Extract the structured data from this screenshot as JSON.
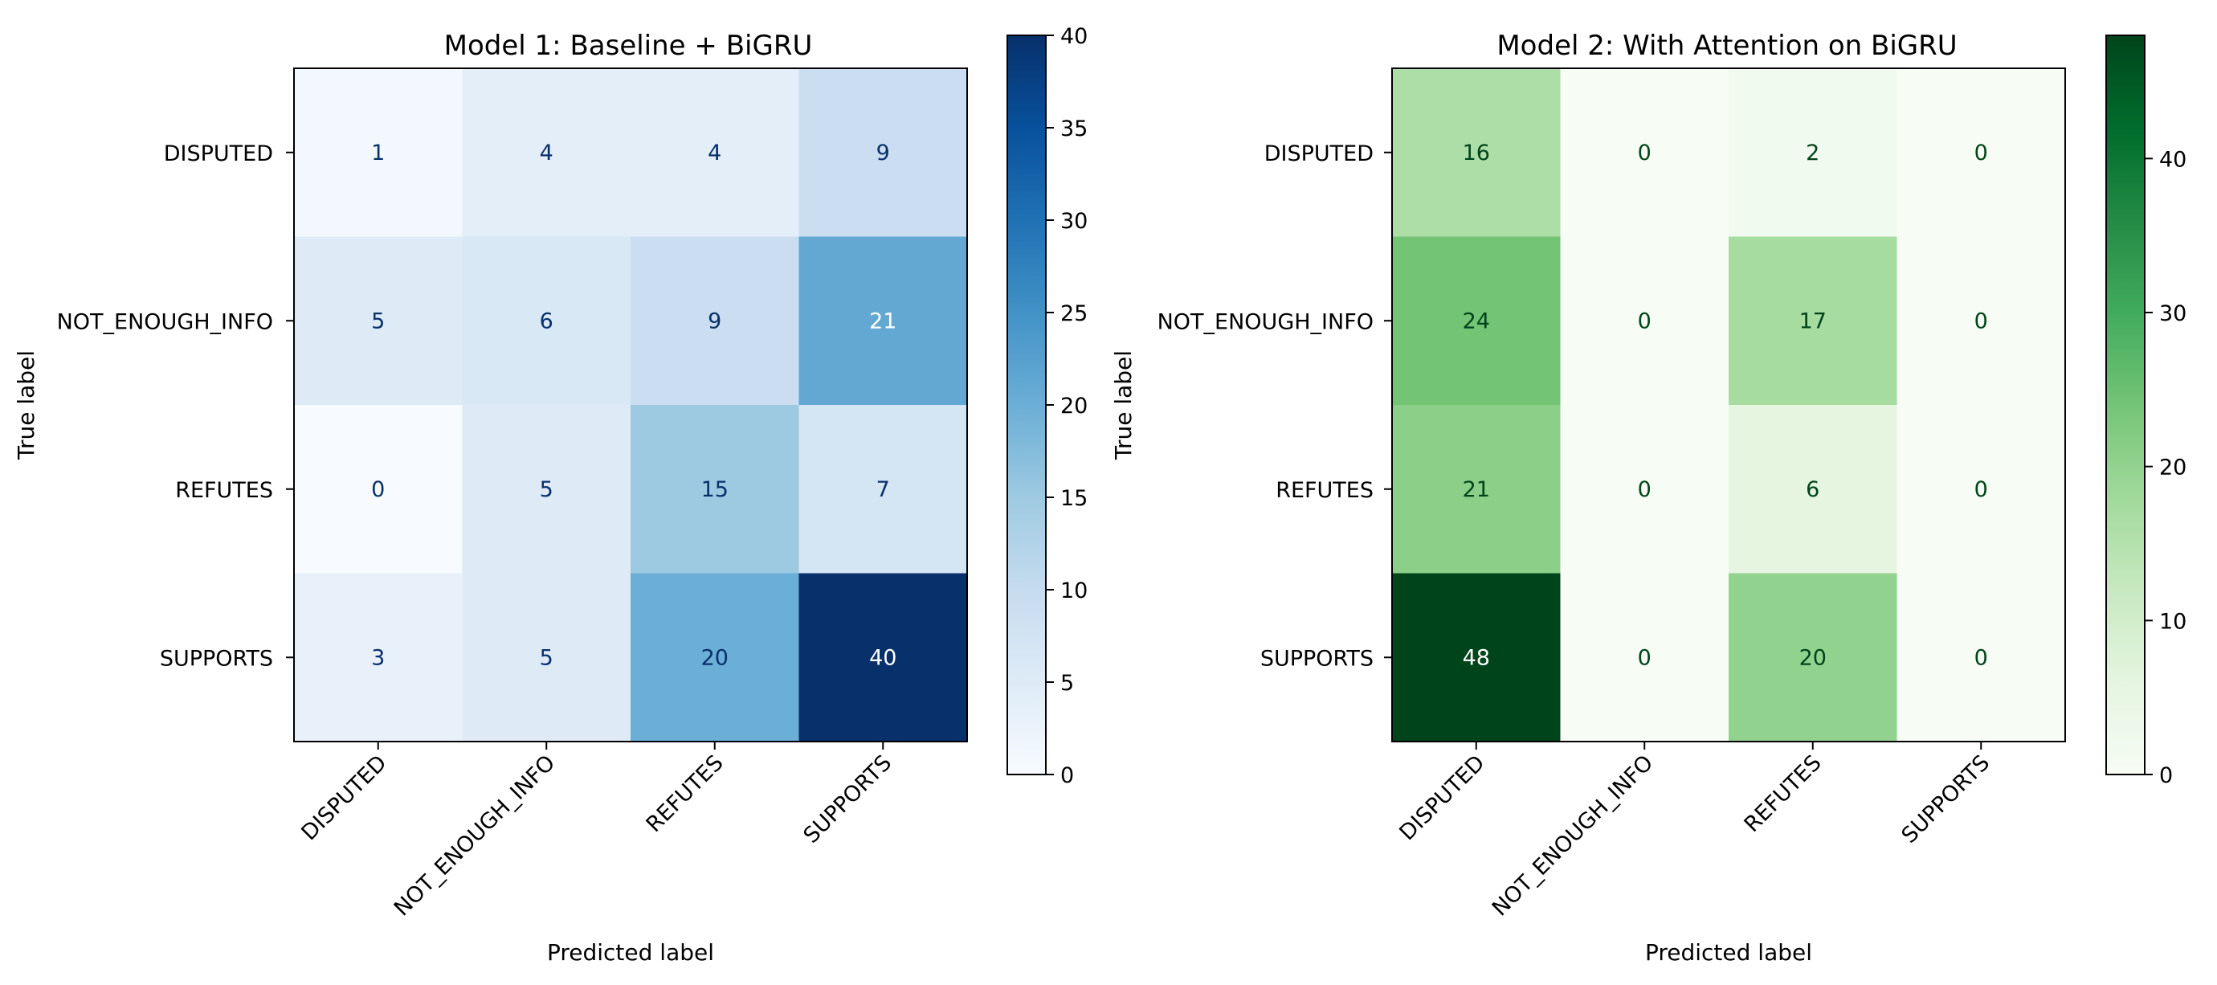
{
  "chart_data": [
    {
      "type": "heatmap",
      "title": "Model 1: Baseline + BiGRU",
      "xlabel": "Predicted label",
      "ylabel": "True label",
      "row_labels": [
        "DISPUTED",
        "NOT_ENOUGH_INFO",
        "REFUTES",
        "SUPPORTS"
      ],
      "col_labels": [
        "DISPUTED",
        "NOT_ENOUGH_INFO",
        "REFUTES",
        "SUPPORTS"
      ],
      "values": [
        [
          1,
          4,
          4,
          9
        ],
        [
          5,
          6,
          9,
          21
        ],
        [
          0,
          5,
          15,
          7
        ],
        [
          3,
          5,
          20,
          40
        ]
      ],
      "colormap": "Blues",
      "color_low": "#f7fbff",
      "color_high": "#08306b",
      "text_light": "#ffffff",
      "text_dark": "#08306b",
      "vmin": 0,
      "vmax": 40,
      "colorbar_ticks": [
        "0",
        "5",
        "10",
        "15",
        "20",
        "25",
        "30",
        "35",
        "40"
      ]
    },
    {
      "type": "heatmap",
      "title": "Model 2: With Attention on BiGRU",
      "xlabel": "Predicted label",
      "ylabel": "True label",
      "row_labels": [
        "DISPUTED",
        "NOT_ENOUGH_INFO",
        "REFUTES",
        "SUPPORTS"
      ],
      "col_labels": [
        "DISPUTED",
        "NOT_ENOUGH_INFO",
        "REFUTES",
        "SUPPORTS"
      ],
      "values": [
        [
          16,
          0,
          2,
          0
        ],
        [
          24,
          0,
          17,
          0
        ],
        [
          21,
          0,
          6,
          0
        ],
        [
          48,
          0,
          20,
          0
        ]
      ],
      "colormap": "Greens",
      "color_low": "#f7fcf5",
      "color_high": "#00441b",
      "text_light": "#ffffff",
      "text_dark": "#00441b",
      "vmin": 0,
      "vmax": 48,
      "colorbar_ticks": [
        "0",
        "10",
        "20",
        "30",
        "40"
      ]
    }
  ]
}
